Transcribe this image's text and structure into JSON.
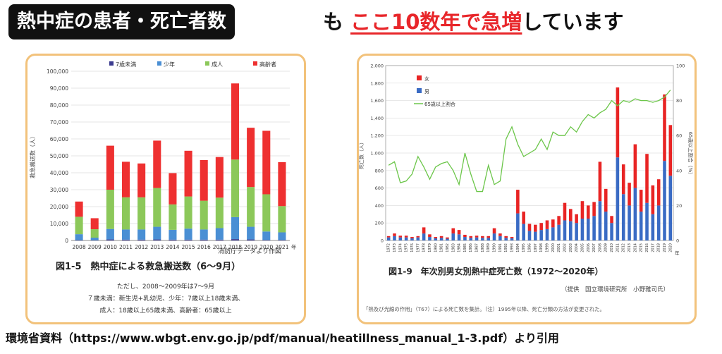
{
  "header": {
    "boxed_title": "熱中症の患者・死亡者数",
    "middle": "も",
    "highlight": "ここ10数年で急増",
    "tail": "しています"
  },
  "footer": {
    "citation": "環境省資料（https://www.wbgt.env.go.jp/pdf/manual/heatillness_manual_1-3.pdf）より引用"
  },
  "chart_data": [
    {
      "type": "bar",
      "stacked": true,
      "title": "図1-5　熱中症による救急搬送数（6〜9月）",
      "ylabel": "救急搬送数（人）",
      "xlabel": "年",
      "source_note": "消防庁データより作図",
      "notes": [
        "ただし、2008〜2009年は7〜9月",
        "７歳未満：新生児+乳幼児、少年：7歳以上18歳未満、",
        "成人：18歳以上65歳未満、高齢者：65歳以上"
      ],
      "ylim": [
        0,
        100000
      ],
      "yticks": [
        "0",
        "10,000",
        "20,000",
        "30,000",
        "40,000",
        "50,000",
        "60,000",
        "70,000",
        "80,000",
        "90,000",
        "100,000"
      ],
      "categories": [
        "2008",
        "2009",
        "2010",
        "2011",
        "2012",
        "2013",
        "2014",
        "2015",
        "2016",
        "2017",
        "2018",
        "2019",
        "2020",
        "2021"
      ],
      "legend_position": "top",
      "series": [
        {
          "name": "7歳未満",
          "color": "#3b3b8f",
          "values": [
            200,
            150,
            600,
            500,
            500,
            600,
            500,
            500,
            500,
            500,
            800,
            600,
            300,
            300
          ]
        },
        {
          "name": "少年",
          "color": "#4a8fd4",
          "values": [
            3500,
            1500,
            6200,
            6000,
            6000,
            7500,
            5800,
            6500,
            6000,
            6800,
            13000,
            7500,
            5000,
            4500
          ]
        },
        {
          "name": "成人",
          "color": "#8cc85a",
          "values": [
            10300,
            5000,
            23200,
            19000,
            19000,
            22900,
            15000,
            19000,
            17000,
            18000,
            34000,
            23500,
            22000,
            15500
          ]
        },
        {
          "name": "高齢者",
          "color": "#ee3030",
          "values": [
            9000,
            6500,
            26000,
            21000,
            20000,
            28000,
            18500,
            27000,
            24000,
            24000,
            45000,
            35000,
            37500,
            26000
          ]
        }
      ]
    },
    {
      "type": "bar",
      "stacked": true,
      "title": "図1-9　年次別男女別熱中症死亡数（1972〜2020年）",
      "ylabel": "死亡数（人）",
      "y2label": "65歳以上割合（%）",
      "xlabel": "年",
      "source_note": "（提供　国立環境研究所　小野雅司氏）",
      "footnote": "「熱及び光線の作用」（T67）による死亡数を集計。（注）1995年以降、死亡分類の方法が変更された。",
      "ylim": [
        0,
        2000
      ],
      "y2lim": [
        0,
        100
      ],
      "yticks": [
        "0",
        "200",
        "400",
        "600",
        "800",
        "1,000",
        "1,200",
        "1,400",
        "1,600",
        "1,800",
        "2,000"
      ],
      "y2ticks": [
        "0",
        "20",
        "40",
        "60",
        "80",
        "100"
      ],
      "categories": [
        "1972",
        "1973",
        "1974",
        "1975",
        "1976",
        "1977",
        "1978",
        "1979",
        "1980",
        "1981",
        "1982",
        "1983",
        "1984",
        "1985",
        "1986",
        "1987",
        "1988",
        "1989",
        "1990",
        "1991",
        "1992",
        "1993",
        "1994",
        "1995",
        "1996",
        "1997",
        "1998",
        "1999",
        "2000",
        "2001",
        "2002",
        "2003",
        "2004",
        "2005",
        "2006",
        "2007",
        "2008",
        "2009",
        "2010",
        "2011",
        "2012",
        "2013",
        "2014",
        "2015",
        "2016",
        "2017",
        "2018",
        "2019",
        "2020"
      ],
      "legend_position": "top-left",
      "series": [
        {
          "name": "男",
          "color": "#3a6bc4",
          "values": [
            35,
            50,
            35,
            35,
            25,
            35,
            80,
            40,
            25,
            30,
            20,
            80,
            70,
            40,
            30,
            35,
            30,
            30,
            80,
            50,
            30,
            25,
            310,
            190,
            110,
            100,
            120,
            130,
            150,
            180,
            230,
            220,
            200,
            250,
            250,
            280,
            450,
            330,
            200,
            950,
            530,
            400,
            600,
            330,
            430,
            300,
            400,
            910,
            740
          ]
        },
        {
          "name": "女",
          "color": "#e82424",
          "values": [
            15,
            30,
            20,
            20,
            15,
            15,
            70,
            30,
            15,
            20,
            15,
            60,
            50,
            25,
            20,
            20,
            20,
            20,
            60,
            30,
            20,
            15,
            270,
            140,
            80,
            80,
            80,
            100,
            90,
            100,
            200,
            140,
            100,
            200,
            150,
            160,
            450,
            260,
            80,
            800,
            340,
            260,
            500,
            250,
            560,
            330,
            300,
            760,
            580
          ]
        },
        {
          "name": "65歳以上割合",
          "color": "#6cc64a",
          "type": "line",
          "values": [
            43,
            45,
            33,
            34,
            38,
            48,
            42,
            35,
            42,
            44,
            45,
            40,
            32,
            50,
            38,
            28,
            28,
            43,
            32,
            34,
            58,
            65,
            55,
            48,
            50,
            52,
            58,
            52,
            62,
            60,
            60,
            65,
            62,
            68,
            72,
            70,
            73,
            75,
            80,
            77,
            80,
            79,
            81,
            80,
            80,
            79,
            80,
            82,
            86
          ]
        }
      ]
    }
  ]
}
